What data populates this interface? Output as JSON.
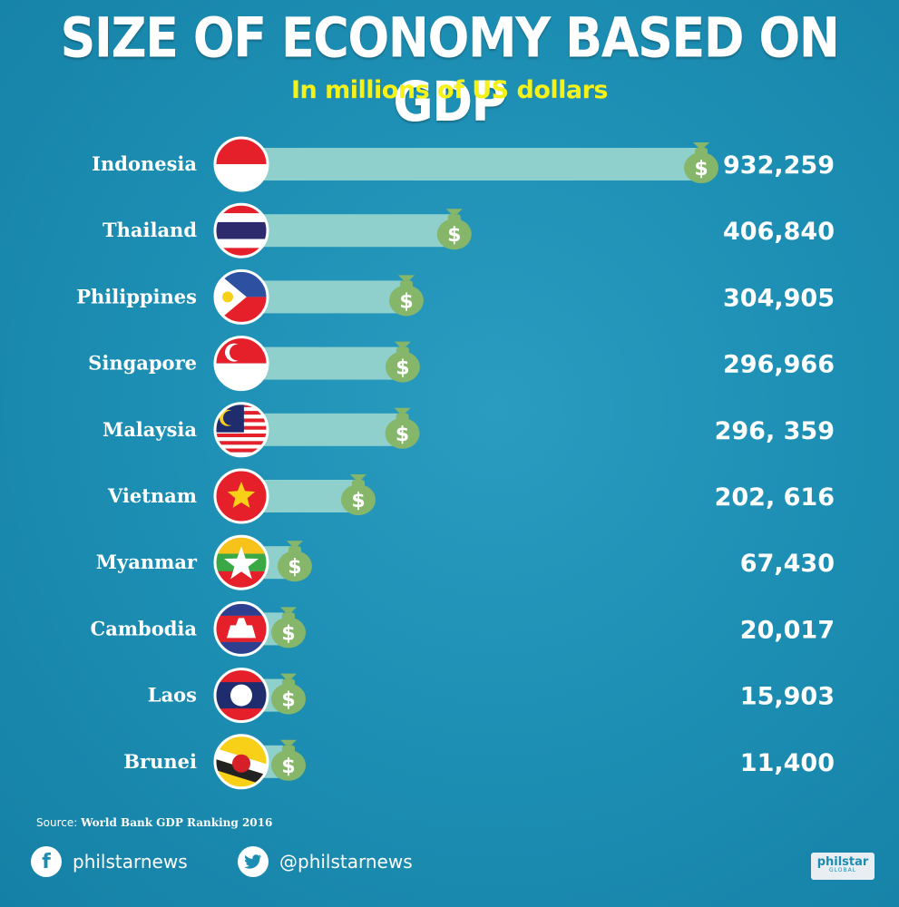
{
  "header": {
    "title": "SIZE OF ECONOMY BASED ON GDP",
    "subtitle": "In millions of US dollars"
  },
  "chart_data": {
    "type": "bar",
    "orientation": "horizontal",
    "title": "SIZE OF ECONOMY BASED ON GDP",
    "subtitle": "In millions of US dollars",
    "categories": [
      "Indonesia",
      "Thailand",
      "Philippines",
      "Singapore",
      "Malaysia",
      "Vietnam",
      "Myanmar",
      "Cambodia",
      "Laos",
      "Brunei"
    ],
    "values": [
      932259,
      406840,
      304905,
      296966,
      296359,
      202616,
      67430,
      20017,
      15903,
      11400
    ],
    "value_labels": [
      "932,259",
      "406,840",
      "304,905",
      "296,966",
      "296, 359",
      "202, 616",
      "67,430",
      "20,017",
      "15,903",
      "11,400"
    ],
    "xlim": [
      0,
      932259
    ],
    "grid": false,
    "legend": "none",
    "bar_color": "#8fd0cd",
    "moneybag_color": "#86b66a",
    "flags": [
      "indonesia-flag",
      "thailand-flag",
      "philippines-flag",
      "singapore-flag",
      "malaysia-flag",
      "vietnam-flag",
      "myanmar-flag",
      "cambodia-flag",
      "laos-flag",
      "brunei-flag"
    ]
  },
  "footer": {
    "source_prefix": "Source:",
    "source_name": "World Bank GDP Ranking 2016",
    "facebook_icon": "facebook-icon",
    "facebook_handle": "philstarnews",
    "twitter_icon": "twitter-icon",
    "twitter_handle": "@philstarnews",
    "logo_line1": "philstar",
    "logo_line2": "GLOBAL"
  },
  "colors": {
    "background": "#1c8db2",
    "title": "#ffffff",
    "subtitle": "#f5f21a"
  }
}
